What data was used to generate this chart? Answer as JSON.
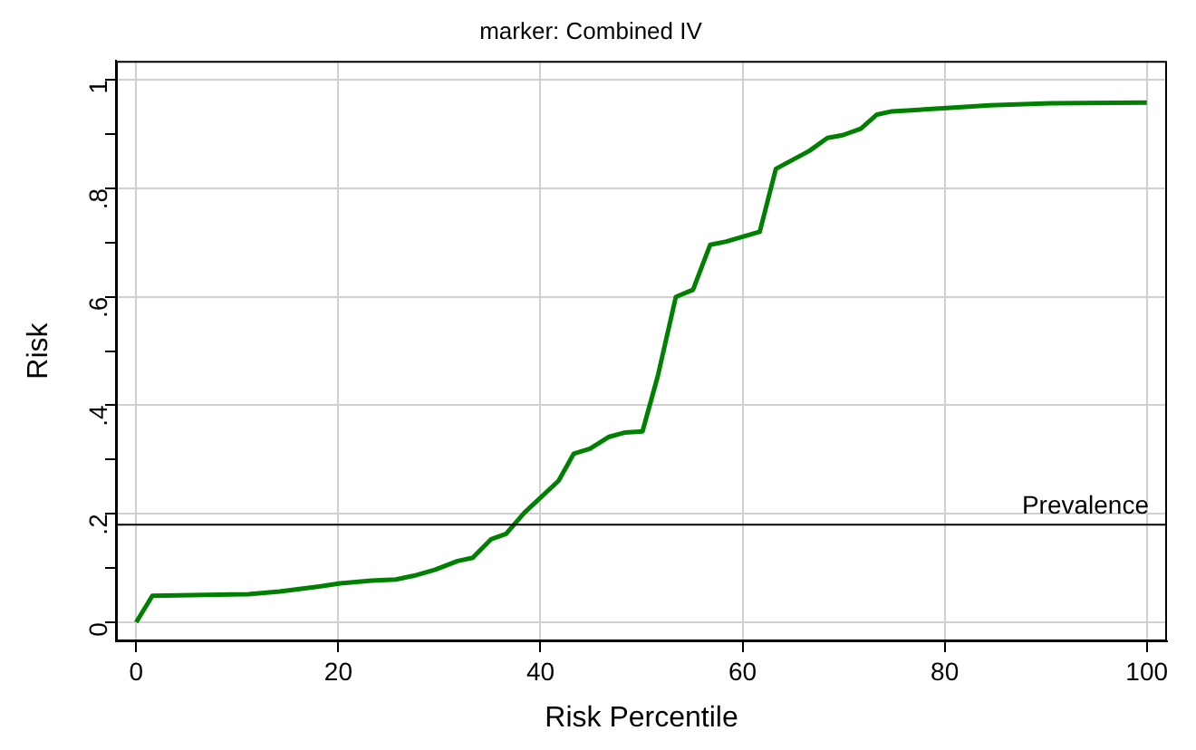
{
  "chart_data": {
    "type": "line",
    "title": "marker: Combined IV",
    "xlabel": "Risk Percentile",
    "ylabel": "Risk",
    "x": [
      0,
      1.6,
      11.1,
      14.2,
      18.1,
      20.2,
      23.3,
      25.7,
      27.5,
      29.6,
      31.8,
      33.3,
      35.1,
      36.6,
      38.4,
      41.8,
      43.3,
      44.9,
      46.8,
      48.4,
      50.1,
      51.6,
      53.4,
      55.1,
      56.8,
      58.4,
      61.7,
      63.3,
      66.6,
      68.4,
      69.9,
      71.7,
      73.3,
      74.8,
      80.2,
      84.5,
      90.5,
      100
    ],
    "series": [
      {
        "color": "#008000",
        "values": [
          0,
          0.049,
          0.052,
          0.057,
          0.066,
          0.072,
          0.077,
          0.079,
          0.086,
          0.097,
          0.113,
          0.119,
          0.153,
          0.163,
          0.202,
          0.261,
          0.311,
          0.32,
          0.342,
          0.35,
          0.352,
          0.453,
          0.6,
          0.613,
          0.696,
          0.702,
          0.72,
          0.836,
          0.869,
          0.893,
          0.898,
          0.91,
          0.936,
          0.942,
          0.948,
          0.953,
          0.957,
          0.958
        ]
      }
    ],
    "xlim": [
      -2,
      102
    ],
    "ylim": [
      -0.035,
      1.035
    ],
    "xticks": [
      0,
      20,
      40,
      60,
      80,
      100
    ],
    "yticks": [
      {
        "value": 0,
        "label": "0"
      },
      {
        "value": 0.1,
        "label": null
      },
      {
        "value": 0.2,
        "label": ".2"
      },
      {
        "value": 0.3,
        "label": null
      },
      {
        "value": 0.4,
        "label": ".4"
      },
      {
        "value": 0.5,
        "label": null
      },
      {
        "value": 0.6,
        "label": ".6"
      },
      {
        "value": 0.7,
        "label": null
      },
      {
        "value": 0.8,
        "label": ".8"
      },
      {
        "value": 0.9,
        "label": null
      },
      {
        "value": 1,
        "label": "1"
      }
    ],
    "ref_lines": [
      {
        "axis": "y",
        "value": 0.18,
        "label": "Prevalence",
        "color": "#000000"
      }
    ],
    "grid": true,
    "legend": false,
    "marker": "none",
    "line_style": "solid"
  }
}
